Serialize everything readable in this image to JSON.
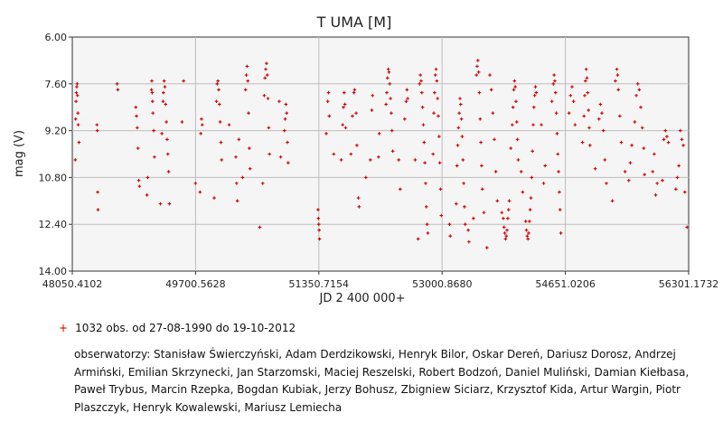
{
  "chart_data": {
    "type": "scatter",
    "title": "T UMA [M]",
    "xlabel": "JD 2 400 000+",
    "ylabel": "mag (V)",
    "xlim": [
      48050.4102,
      56301.1732
    ],
    "ylim": [
      14.0,
      6.0
    ],
    "y_inverted": true,
    "grid": true,
    "x_ticks": [
      "48050.4102",
      "49700.5628",
      "51350.7154",
      "53000.8680",
      "54651.0206",
      "56301.1732"
    ],
    "y_ticks": [
      "6.00",
      "7.60",
      "9.20",
      "10.80",
      "12.40",
      "14.00"
    ],
    "marker_color": "#cc0000",
    "series": [
      {
        "points": [
          [
            48090,
            10.2
          ],
          [
            48095,
            8.8
          ],
          [
            48100,
            8.2
          ],
          [
            48105,
            7.9
          ],
          [
            48110,
            7.7
          ],
          [
            48115,
            7.6
          ],
          [
            48120,
            8.0
          ],
          [
            48125,
            8.6
          ],
          [
            48130,
            9.0
          ],
          [
            48140,
            9.6
          ],
          [
            48380,
            9.0
          ],
          [
            48385,
            9.2
          ],
          [
            48390,
            11.3
          ],
          [
            48395,
            11.9
          ],
          [
            48650,
            7.6
          ],
          [
            48660,
            7.8
          ],
          [
            48900,
            8.4
          ],
          [
            48910,
            8.7
          ],
          [
            48920,
            9.1
          ],
          [
            48930,
            9.8
          ],
          [
            48940,
            10.9
          ],
          [
            48950,
            11.1
          ],
          [
            49050,
            11.4
          ],
          [
            49060,
            10.8
          ],
          [
            49110,
            7.8
          ],
          [
            49115,
            7.5
          ],
          [
            49120,
            7.9
          ],
          [
            49125,
            8.2
          ],
          [
            49130,
            8.6
          ],
          [
            49140,
            9.2
          ],
          [
            49150,
            10.1
          ],
          [
            49230,
            11.7
          ],
          [
            49250,
            9.3
          ],
          [
            49265,
            8.2
          ],
          [
            49270,
            7.9
          ],
          [
            49280,
            7.5
          ],
          [
            49290,
            7.7
          ],
          [
            49300,
            8.3
          ],
          [
            49310,
            8.9
          ],
          [
            49320,
            9.5
          ],
          [
            49330,
            10.0
          ],
          [
            49340,
            10.6
          ],
          [
            49350,
            11.7
          ],
          [
            49520,
            8.9
          ],
          [
            49540,
            7.5
          ],
          [
            49700,
            11.0
          ],
          [
            49760,
            11.3
          ],
          [
            49770,
            9.3
          ],
          [
            49780,
            8.8
          ],
          [
            49790,
            9.0
          ],
          [
            49950,
            11.5
          ],
          [
            49980,
            8.2
          ],
          [
            49990,
            7.6
          ],
          [
            50000,
            7.5
          ],
          [
            50010,
            7.8
          ],
          [
            50020,
            8.3
          ],
          [
            50030,
            8.9
          ],
          [
            50040,
            9.6
          ],
          [
            50050,
            10.2
          ],
          [
            50150,
            9.0
          ],
          [
            50240,
            10.1
          ],
          [
            50250,
            11.0
          ],
          [
            50260,
            11.6
          ],
          [
            50280,
            9.5
          ],
          [
            50330,
            10.8
          ],
          [
            50370,
            7.8
          ],
          [
            50380,
            7.3
          ],
          [
            50390,
            7.0
          ],
          [
            50400,
            7.5
          ],
          [
            50410,
            8.6
          ],
          [
            50420,
            9.8
          ],
          [
            50430,
            10.5
          ],
          [
            50560,
            12.5
          ],
          [
            50600,
            11.0
          ],
          [
            50620,
            8.0
          ],
          [
            50630,
            7.4
          ],
          [
            50640,
            7.1
          ],
          [
            50650,
            6.9
          ],
          [
            50660,
            7.3
          ],
          [
            50670,
            8.1
          ],
          [
            50680,
            9.1
          ],
          [
            50690,
            10.0
          ],
          [
            50820,
            8.2
          ],
          [
            50840,
            10.1
          ],
          [
            50890,
            9.2
          ],
          [
            50900,
            8.8
          ],
          [
            50910,
            8.3
          ],
          [
            50920,
            8.6
          ],
          [
            50930,
            9.6
          ],
          [
            50940,
            10.3
          ],
          [
            51340,
            11.9
          ],
          [
            51345,
            12.2
          ],
          [
            51350,
            12.4
          ],
          [
            51355,
            12.6
          ],
          [
            51360,
            12.9
          ],
          [
            51450,
            9.3
          ],
          [
            51470,
            8.2
          ],
          [
            51480,
            7.9
          ],
          [
            51490,
            8.7
          ],
          [
            51550,
            10.0
          ],
          [
            51650,
            10.2
          ],
          [
            51670,
            9.0
          ],
          [
            51680,
            8.4
          ],
          [
            51690,
            7.9
          ],
          [
            51700,
            8.3
          ],
          [
            51710,
            9.1
          ],
          [
            51780,
            10.0
          ],
          [
            51800,
            8.7
          ],
          [
            51820,
            7.9
          ],
          [
            51830,
            7.8
          ],
          [
            51850,
            8.6
          ],
          [
            51860,
            9.7
          ],
          [
            51880,
            11.5
          ],
          [
            51890,
            11.8
          ],
          [
            51980,
            10.8
          ],
          [
            52040,
            10.2
          ],
          [
            52060,
            8.5
          ],
          [
            52070,
            8.0
          ],
          [
            52150,
            10.1
          ],
          [
            52160,
            9.3
          ],
          [
            52250,
            8.3
          ],
          [
            52260,
            7.9
          ],
          [
            52270,
            7.4
          ],
          [
            52280,
            7.1
          ],
          [
            52290,
            7.2
          ],
          [
            52300,
            7.6
          ],
          [
            52310,
            8.1
          ],
          [
            52320,
            8.6
          ],
          [
            52330,
            9.2
          ],
          [
            52340,
            9.9
          ],
          [
            52420,
            10.2
          ],
          [
            52440,
            11.2
          ],
          [
            52500,
            8.8
          ],
          [
            52520,
            8.2
          ],
          [
            52530,
            7.8
          ],
          [
            52540,
            8.1
          ],
          [
            52640,
            10.2
          ],
          [
            52680,
            12.9
          ],
          [
            52700,
            7.6
          ],
          [
            52710,
            7.3
          ],
          [
            52720,
            7.5
          ],
          [
            52730,
            7.9
          ],
          [
            52740,
            8.4
          ],
          [
            52750,
            9.0
          ],
          [
            52760,
            9.6
          ],
          [
            52770,
            10.3
          ],
          [
            52780,
            11.0
          ],
          [
            52790,
            11.8
          ],
          [
            52800,
            12.4
          ],
          [
            52810,
            12.7
          ],
          [
            52880,
            10.0
          ],
          [
            52890,
            8.6
          ],
          [
            52900,
            7.9
          ],
          [
            52910,
            7.3
          ],
          [
            52920,
            7.1
          ],
          [
            52930,
            7.5
          ],
          [
            52940,
            8.1
          ],
          [
            52950,
            8.7
          ],
          [
            52960,
            9.4
          ],
          [
            52970,
            10.3
          ],
          [
            52980,
            11.2
          ],
          [
            52990,
            12.1
          ],
          [
            53100,
            12.4
          ],
          [
            53110,
            12.8
          ],
          [
            53190,
            11.7
          ],
          [
            53200,
            10.4
          ],
          [
            53210,
            9.7
          ],
          [
            53220,
            9.1
          ],
          [
            53230,
            8.6
          ],
          [
            53240,
            8.1
          ],
          [
            53250,
            8.3
          ],
          [
            53260,
            8.8
          ],
          [
            53270,
            9.4
          ],
          [
            53280,
            10.2
          ],
          [
            53290,
            11.0
          ],
          [
            53300,
            11.8
          ],
          [
            53310,
            12.4
          ],
          [
            53350,
            12.6
          ],
          [
            53360,
            13.0
          ],
          [
            53420,
            12.2
          ],
          [
            53460,
            7.3
          ],
          [
            53470,
            7.0
          ],
          [
            53480,
            6.8
          ],
          [
            53490,
            7.2
          ],
          [
            53500,
            7.9
          ],
          [
            53510,
            8.8
          ],
          [
            53520,
            9.6
          ],
          [
            53530,
            10.4
          ],
          [
            53540,
            11.2
          ],
          [
            53560,
            12.0
          ],
          [
            53600,
            13.2
          ],
          [
            53640,
            7.3
          ],
          [
            53660,
            7.8
          ],
          [
            53680,
            8.6
          ],
          [
            53700,
            9.5
          ],
          [
            53720,
            10.6
          ],
          [
            53740,
            11.6
          ],
          [
            53800,
            12.0
          ],
          [
            53820,
            12.2
          ],
          [
            53830,
            12.5
          ],
          [
            53840,
            12.7
          ],
          [
            53850,
            12.9
          ],
          [
            53860,
            12.8
          ],
          [
            53870,
            12.6
          ],
          [
            53880,
            12.2
          ],
          [
            53890,
            11.9
          ],
          [
            53900,
            11.6
          ],
          [
            53920,
            9.8
          ],
          [
            53940,
            9.0
          ],
          [
            53950,
            8.4
          ],
          [
            53960,
            7.8
          ],
          [
            53970,
            7.5
          ],
          [
            53980,
            7.7
          ],
          [
            53990,
            8.2
          ],
          [
            54000,
            8.9
          ],
          [
            54010,
            9.5
          ],
          [
            54020,
            10.2
          ],
          [
            54060,
            10.6
          ],
          [
            54080,
            11.3
          ],
          [
            54120,
            12.3
          ],
          [
            54130,
            12.6
          ],
          [
            54140,
            12.8
          ],
          [
            54150,
            12.9
          ],
          [
            54160,
            12.7
          ],
          [
            54170,
            12.3
          ],
          [
            54180,
            11.9
          ],
          [
            54190,
            11.5
          ],
          [
            54200,
            10.8
          ],
          [
            54210,
            9.9
          ],
          [
            54220,
            9.0
          ],
          [
            54230,
            8.4
          ],
          [
            54240,
            8.0
          ],
          [
            54250,
            7.7
          ],
          [
            54260,
            7.9
          ],
          [
            54330,
            9.0
          ],
          [
            54360,
            11.0
          ],
          [
            54380,
            10.4
          ],
          [
            54470,
            8.2
          ],
          [
            54490,
            7.6
          ],
          [
            54500,
            7.3
          ],
          [
            54510,
            7.5
          ],
          [
            54520,
            7.9
          ],
          [
            54530,
            8.6
          ],
          [
            54540,
            9.3
          ],
          [
            54550,
            10.0
          ],
          [
            54560,
            10.6
          ],
          [
            54570,
            11.3
          ],
          [
            54580,
            11.9
          ],
          [
            54590,
            12.7
          ],
          [
            54700,
            8.6
          ],
          [
            54720,
            8.0
          ],
          [
            54740,
            7.7
          ],
          [
            54760,
            8.2
          ],
          [
            54780,
            9.0
          ],
          [
            54880,
            9.6
          ],
          [
            54900,
            8.7
          ],
          [
            54910,
            8.0
          ],
          [
            54920,
            7.5
          ],
          [
            54930,
            7.1
          ],
          [
            54940,
            7.4
          ],
          [
            54950,
            7.9
          ],
          [
            54960,
            8.5
          ],
          [
            54970,
            9.1
          ],
          [
            54980,
            9.7
          ],
          [
            55050,
            10.5
          ],
          [
            55100,
            8.8
          ],
          [
            55120,
            8.3
          ],
          [
            55140,
            8.6
          ],
          [
            55160,
            9.2
          ],
          [
            55180,
            10.2
          ],
          [
            55200,
            11.0
          ],
          [
            55280,
            11.6
          ],
          [
            55320,
            7.5
          ],
          [
            55340,
            7.1
          ],
          [
            55350,
            7.3
          ],
          [
            55360,
            7.8
          ],
          [
            55380,
            8.7
          ],
          [
            55400,
            9.6
          ],
          [
            55450,
            10.6
          ],
          [
            55500,
            10.9
          ],
          [
            55520,
            10.3
          ],
          [
            55540,
            9.7
          ],
          [
            55580,
            8.9
          ],
          [
            55600,
            8.0
          ],
          [
            55620,
            7.6
          ],
          [
            55640,
            7.8
          ],
          [
            55660,
            8.4
          ],
          [
            55680,
            9.1
          ],
          [
            55700,
            9.8
          ],
          [
            55710,
            10.7
          ],
          [
            55820,
            10.6
          ],
          [
            55840,
            10.0
          ],
          [
            55860,
            11.4
          ],
          [
            55880,
            11.0
          ],
          [
            55950,
            10.9
          ],
          [
            55970,
            9.5
          ],
          [
            55990,
            9.2
          ],
          [
            56010,
            9.4
          ],
          [
            56030,
            9.6
          ],
          [
            56130,
            11.2
          ],
          [
            56150,
            10.8
          ],
          [
            56170,
            10.4
          ],
          [
            56190,
            9.2
          ],
          [
            56210,
            9.5
          ],
          [
            56230,
            9.7
          ],
          [
            56250,
            11.3
          ],
          [
            56280,
            12.5
          ]
        ]
      }
    ]
  },
  "legend": {
    "marker": "+",
    "text": "1032 obs. od 27-08-1990 do 19-10-2012"
  },
  "observers": "obserwatorzy: Stanisław Świerczyński, Adam Derdzikowski, Henryk Bilor, Oskar Dereń, Dariusz Dorosz, Andrzej Armiński, Emilian Skrzynecki, Jan Starzomski, Maciej Reszelski, Robert Bodzoń, Daniel Muliński, Damian Kiełbasa, Paweł Trybus, Marcin Rzepka, Bogdan Kubiak, Jerzy Bohusz, Zbigniew Siciarz, Krzysztof Kida, Artur Wargin, Piotr Plaszczyk, Henryk Kowalewski, Mariusz Lemiecha"
}
